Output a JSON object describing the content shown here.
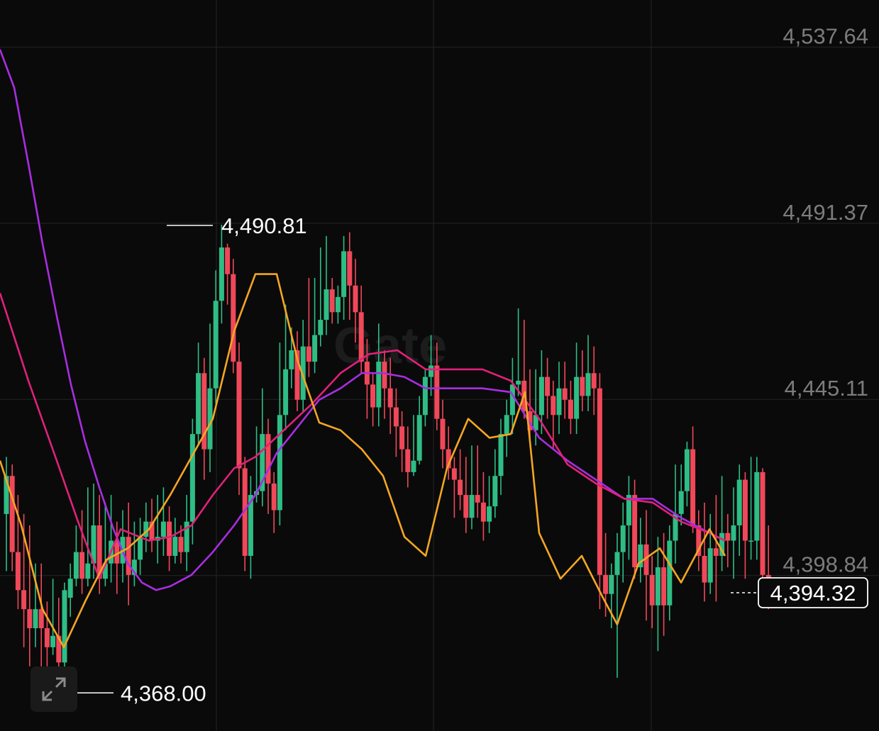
{
  "colors": {
    "background": "#0a0a0a",
    "grid": "#242424",
    "up": "#2ebd85",
    "down": "#f0485a",
    "ma_fast": "#f5a623",
    "ma_mid": "#e0217a",
    "ma_slow": "#a82ee0",
    "axis_text": "#7c7c7c",
    "label_text": "#ffffff"
  },
  "watermark": "Gate",
  "icons": {
    "expand": "expand-arrows-icon"
  },
  "chart_data": {
    "type": "candlestick",
    "ylim": [
      4358.0,
      4550.0
    ],
    "y_ticks": [
      {
        "value": 4537.64,
        "label": "4,537.64"
      },
      {
        "value": 4491.37,
        "label": "4,491.37"
      },
      {
        "value": 4445.11,
        "label": "4,445.11"
      },
      {
        "value": 4398.84,
        "label": "4,398.84"
      }
    ],
    "high_marker": {
      "value": 4490.81,
      "label": "4,490.81"
    },
    "low_marker": {
      "value": 4368.0,
      "label": "4,368.00"
    },
    "current_price": {
      "value": 4394.32,
      "label": "4,394.32"
    },
    "candles": [
      [
        4415,
        4425,
        4400,
        4430
      ],
      [
        4425,
        4405,
        4400,
        4428
      ],
      [
        4405,
        4395,
        4390,
        4420
      ],
      [
        4395,
        4390,
        4380,
        4415
      ],
      [
        4390,
        4385,
        4375,
        4412
      ],
      [
        4385,
        4390,
        4380,
        4402
      ],
      [
        4390,
        4385,
        4375,
        4402
      ],
      [
        4385,
        4380,
        4375,
        4392
      ],
      [
        4380,
        4383,
        4378,
        4398
      ],
      [
        4383,
        4376,
        4370,
        4393
      ],
      [
        4376,
        4395,
        4368,
        4397
      ],
      [
        4393,
        4398,
        4388,
        4402
      ],
      [
        4398,
        4405,
        4396,
        4412
      ],
      [
        4405,
        4398,
        4394,
        4416
      ],
      [
        4398,
        4402,
        4396,
        4422
      ],
      [
        4402,
        4412,
        4398,
        4423
      ],
      [
        4412,
        4398,
        4394,
        4420
      ],
      [
        4398,
        4402,
        4396,
        4418
      ],
      [
        4402,
        4408,
        4397,
        4420
      ],
      [
        4408,
        4402,
        4394,
        4413
      ],
      [
        4402,
        4409,
        4397,
        4416
      ],
      [
        4409,
        4399,
        4391,
        4418
      ],
      [
        4399,
        4403,
        4396,
        4413
      ],
      [
        4403,
        4409,
        4399,
        4414
      ],
      [
        4409,
        4413,
        4405,
        4418
      ],
      [
        4413,
        4408,
        4405,
        4419
      ],
      [
        4408,
        4409,
        4402,
        4420
      ],
      [
        4409,
        4413,
        4404,
        4422
      ],
      [
        4413,
        4404,
        4400,
        4417
      ],
      [
        4404,
        4409,
        4402,
        4414
      ],
      [
        4409,
        4405,
        4402,
        4412
      ],
      [
        4405,
        4413,
        4400,
        4420
      ],
      [
        4413,
        4436,
        4407,
        4440
      ],
      [
        4436,
        4452,
        4433,
        4460
      ],
      [
        4452,
        4432,
        4424,
        4456
      ],
      [
        4432,
        4448,
        4426,
        4465
      ],
      [
        4448,
        4471,
        4444,
        4479
      ],
      [
        4471,
        4485,
        4465,
        4491
      ],
      [
        4485,
        4478,
        4470,
        4486
      ],
      [
        4478,
        4455,
        4452,
        4482
      ],
      [
        4455,
        4427,
        4420,
        4460
      ],
      [
        4427,
        4404,
        4400,
        4430
      ],
      [
        4404,
        4420,
        4398,
        4425
      ],
      [
        4420,
        4421,
        4418,
        4438
      ],
      [
        4421,
        4436,
        4417,
        4448
      ],
      [
        4436,
        4423,
        4415,
        4440
      ],
      [
        4423,
        4416,
        4410,
        4426
      ],
      [
        4416,
        4441,
        4412,
        4460
      ],
      [
        4441,
        4453,
        4437,
        4470
      ],
      [
        4453,
        4458,
        4448,
        4464
      ],
      [
        4458,
        4445,
        4442,
        4463
      ],
      [
        4445,
        4459,
        4442,
        4466
      ],
      [
        4459,
        4455,
        4451,
        4477
      ],
      [
        4455,
        4462,
        4452,
        4477
      ],
      [
        4462,
        4466,
        4459,
        4485
      ],
      [
        4466,
        4474,
        4462,
        4488
      ],
      [
        4474,
        4468,
        4465,
        4477
      ],
      [
        4468,
        4472,
        4465,
        4475
      ],
      [
        4472,
        4484,
        4466,
        4488
      ],
      [
        4484,
        4475,
        4466,
        4489
      ],
      [
        4475,
        4468,
        4460,
        4482
      ],
      [
        4468,
        4455,
        4452,
        4475
      ],
      [
        4455,
        4449,
        4440,
        4461
      ],
      [
        4449,
        4443,
        4438,
        4452
      ],
      [
        4443,
        4455,
        4438,
        4465
      ],
      [
        4455,
        4448,
        4440,
        4458
      ],
      [
        4448,
        4443,
        4436,
        4456
      ],
      [
        4443,
        4438,
        4430,
        4448
      ],
      [
        4438,
        4432,
        4426,
        4442
      ],
      [
        4432,
        4426,
        4422,
        4438
      ],
      [
        4426,
        4429,
        4425,
        4441
      ],
      [
        4429,
        4441,
        4428,
        4446
      ],
      [
        4441,
        4451,
        4438,
        4453
      ],
      [
        4451,
        4454,
        4446,
        4462
      ],
      [
        4454,
        4440,
        4437,
        4460
      ],
      [
        4440,
        4432,
        4427,
        4445
      ],
      [
        4432,
        4427,
        4424,
        4438
      ],
      [
        4427,
        4424,
        4414,
        4430
      ],
      [
        4424,
        4420,
        4416,
        4432
      ],
      [
        4420,
        4414,
        4410,
        4430
      ],
      [
        4414,
        4420,
        4411,
        4433
      ],
      [
        4420,
        4418,
        4414,
        4433
      ],
      [
        4418,
        4413,
        4408,
        4426
      ],
      [
        4413,
        4417,
        4410,
        4425
      ],
      [
        4417,
        4425,
        4414,
        4432
      ],
      [
        4425,
        4436,
        4420,
        4440
      ],
      [
        4436,
        4441,
        4430,
        4445
      ],
      [
        4441,
        4449,
        4436,
        4456
      ],
      [
        4449,
        4450,
        4446,
        4469
      ],
      [
        4450,
        4442,
        4440,
        4466
      ],
      [
        4442,
        4437,
        4434,
        4453
      ],
      [
        4437,
        4441,
        4433,
        4453
      ],
      [
        4441,
        4451,
        4436,
        4458
      ],
      [
        4451,
        4446,
        4440,
        4456
      ],
      [
        4446,
        4441,
        4432,
        4450
      ],
      [
        4441,
        4448,
        4436,
        4455
      ],
      [
        4448,
        4445,
        4440,
        4455
      ],
      [
        4445,
        4440,
        4436,
        4450
      ],
      [
        4440,
        4451,
        4436,
        4460
      ],
      [
        4451,
        4446,
        4442,
        4458
      ],
      [
        4446,
        4452,
        4442,
        4462
      ],
      [
        4452,
        4448,
        4441,
        4459
      ],
      [
        4448,
        4399,
        4390,
        4452
      ],
      [
        4399,
        4394,
        4388,
        4410
      ],
      [
        4394,
        4399,
        4385,
        4402
      ],
      [
        4399,
        4405,
        4372,
        4410
      ],
      [
        4405,
        4412,
        4397,
        4418
      ],
      [
        4412,
        4420,
        4403,
        4425
      ],
      [
        4420,
        4401,
        4398,
        4424
      ],
      [
        4401,
        4407,
        4397,
        4414
      ],
      [
        4407,
        4399,
        4387,
        4416
      ],
      [
        4399,
        4391,
        4385,
        4404
      ],
      [
        4391,
        4401,
        4379,
        4409
      ],
      [
        4401,
        4391,
        4383,
        4410
      ],
      [
        4391,
        4408,
        4387,
        4412
      ],
      [
        4408,
        4415,
        4402,
        4428
      ],
      [
        4415,
        4421,
        4412,
        4428
      ],
      [
        4421,
        4432,
        4417,
        4434
      ],
      [
        4432,
        4412,
        4410,
        4438
      ],
      [
        4412,
        4404,
        4400,
        4416
      ],
      [
        4404,
        4397,
        4392,
        4418
      ],
      [
        4397,
        4406,
        4394,
        4415
      ],
      [
        4406,
        4404,
        4392,
        4420
      ],
      [
        4404,
        4410,
        4400,
        4425
      ],
      [
        4410,
        4408,
        4401,
        4415
      ],
      [
        4408,
        4412,
        4398,
        4422
      ],
      [
        4412,
        4424,
        4404,
        4428
      ],
      [
        4424,
        4408,
        4398,
        4426
      ],
      [
        4408,
        4408,
        4403,
        4430
      ],
      [
        4408,
        4426,
        4403,
        4430
      ],
      [
        4426,
        4399,
        4392,
        4427
      ],
      [
        4399,
        4395,
        4390,
        4412
      ]
    ],
    "ma_fast": [
      [
        0,
        4429
      ],
      [
        30,
        4412
      ],
      [
        60,
        4390
      ],
      [
        90,
        4380
      ],
      [
        120,
        4392
      ],
      [
        150,
        4403
      ],
      [
        180,
        4406
      ],
      [
        210,
        4411
      ],
      [
        240,
        4420
      ],
      [
        270,
        4430
      ],
      [
        300,
        4440
      ],
      [
        330,
        4463
      ],
      [
        360,
        4478
      ],
      [
        390,
        4478
      ],
      [
        420,
        4455
      ],
      [
        450,
        4439
      ],
      [
        480,
        4437
      ],
      [
        510,
        4432
      ],
      [
        540,
        4425
      ],
      [
        570,
        4409
      ],
      [
        600,
        4404
      ],
      [
        630,
        4427
      ],
      [
        660,
        4440
      ],
      [
        690,
        4435
      ],
      [
        720,
        4436
      ],
      [
        740,
        4447
      ],
      [
        760,
        4410
      ],
      [
        790,
        4398
      ],
      [
        820,
        4404
      ],
      [
        850,
        4393
      ],
      [
        870,
        4386
      ],
      [
        900,
        4402
      ],
      [
        930,
        4406
      ],
      [
        960,
        4397
      ],
      [
        1000,
        4411
      ],
      [
        1022,
        4404
      ]
    ],
    "ma_slow": [
      [
        0,
        4473
      ],
      [
        40,
        4450
      ],
      [
        80,
        4429
      ],
      [
        110,
        4413
      ],
      [
        140,
        4398
      ],
      [
        170,
        4411
      ],
      [
        210,
        4408
      ],
      [
        240,
        4409
      ],
      [
        270,
        4412
      ],
      [
        300,
        4420
      ],
      [
        330,
        4427
      ],
      [
        360,
        4430
      ],
      [
        400,
        4437
      ],
      [
        440,
        4444
      ],
      [
        480,
        4452
      ],
      [
        520,
        4457
      ],
      [
        560,
        4458
      ],
      [
        600,
        4453
      ],
      [
        640,
        4453
      ],
      [
        680,
        4453
      ],
      [
        720,
        4450
      ],
      [
        760,
        4440
      ],
      [
        800,
        4428
      ],
      [
        840,
        4423
      ],
      [
        880,
        4419
      ],
      [
        920,
        4418
      ],
      [
        960,
        4413
      ],
      [
        1000,
        4410
      ],
      [
        1022,
        4408
      ]
    ],
    "ma_long": [
      [
        0,
        4537
      ],
      [
        20,
        4527
      ],
      [
        40,
        4507
      ],
      [
        60,
        4486
      ],
      [
        80,
        4467
      ],
      [
        100,
        4449
      ],
      [
        120,
        4434
      ],
      [
        140,
        4422
      ],
      [
        160,
        4411
      ],
      [
        180,
        4402
      ],
      [
        200,
        4397
      ],
      [
        220,
        4395
      ],
      [
        240,
        4396
      ],
      [
        270,
        4399
      ],
      [
        300,
        4405
      ],
      [
        330,
        4412
      ],
      [
        360,
        4420
      ],
      [
        390,
        4431
      ],
      [
        420,
        4438
      ],
      [
        450,
        4445
      ],
      [
        480,
        4448
      ],
      [
        510,
        4452
      ],
      [
        540,
        4452
      ],
      [
        570,
        4451
      ],
      [
        600,
        4448
      ],
      [
        640,
        4448
      ],
      [
        680,
        4448
      ],
      [
        720,
        4447
      ],
      [
        760,
        4435
      ],
      [
        800,
        4429
      ],
      [
        840,
        4424
      ],
      [
        880,
        4419
      ],
      [
        920,
        4419
      ],
      [
        960,
        4414
      ],
      [
        1000,
        4410
      ],
      [
        1022,
        4408
      ]
    ]
  }
}
